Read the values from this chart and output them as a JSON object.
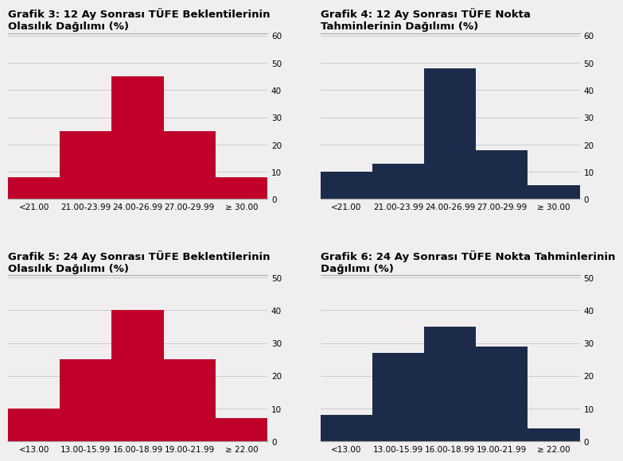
{
  "charts": [
    {
      "title": "Grafik 3: 12 Ay Sonrası TÜFE Beklentilerinin\nOlasılık Dağılımı (%)",
      "categories": [
        "<21.00",
        "21.00-23.99",
        "24.00-26.99",
        "27.00-29.99",
        "≥ 30.00"
      ],
      "values": [
        8,
        25,
        45,
        25,
        8
      ],
      "color": "#c0002a",
      "ylim": [
        0,
        60
      ],
      "yticks": [
        0,
        10,
        20,
        30,
        40,
        50,
        60
      ]
    },
    {
      "title": "Grafik 4: 12 Ay Sonrası TÜFE Nokta\nTahminlerinin Dağılımı (%)",
      "categories": [
        "<21.00",
        "21.00-23.99",
        "24.00-26.99",
        "27.00-29.99",
        "≥ 30.00"
      ],
      "values": [
        10,
        13,
        48,
        18,
        5
      ],
      "color": "#1c2b4a",
      "ylim": [
        0,
        60
      ],
      "yticks": [
        0,
        10,
        20,
        30,
        40,
        50,
        60
      ]
    },
    {
      "title": "Grafik 5: 24 Ay Sonrası TÜFE Beklentilerinin\nOlasılık Dağılımı (%)",
      "categories": [
        "<13.00",
        "13.00-15.99",
        "16.00-18.99",
        "19.00-21.99",
        "≥ 22.00"
      ],
      "values": [
        10,
        25,
        40,
        25,
        7
      ],
      "color": "#c0002a",
      "ylim": [
        0,
        50
      ],
      "yticks": [
        0,
        10,
        20,
        30,
        40,
        50
      ]
    },
    {
      "title": "Grafik 6: 24 Ay Sonrası TÜFE Nokta Tahminlerinin\nDağılımı (%)",
      "categories": [
        "<13.00",
        "13.00-15.99",
        "16.00-18.99",
        "19.00-21.99",
        "≥ 22.00"
      ],
      "values": [
        8,
        27,
        35,
        29,
        4
      ],
      "color": "#1c2b4a",
      "ylim": [
        0,
        50
      ],
      "yticks": [
        0,
        10,
        20,
        30,
        40,
        50
      ]
    }
  ],
  "background_color": "#f0eeee",
  "grid_color": "#cccccc",
  "title_fontsize": 9.5,
  "tick_fontsize": 7.5,
  "separator_color": "#aaaaaa"
}
